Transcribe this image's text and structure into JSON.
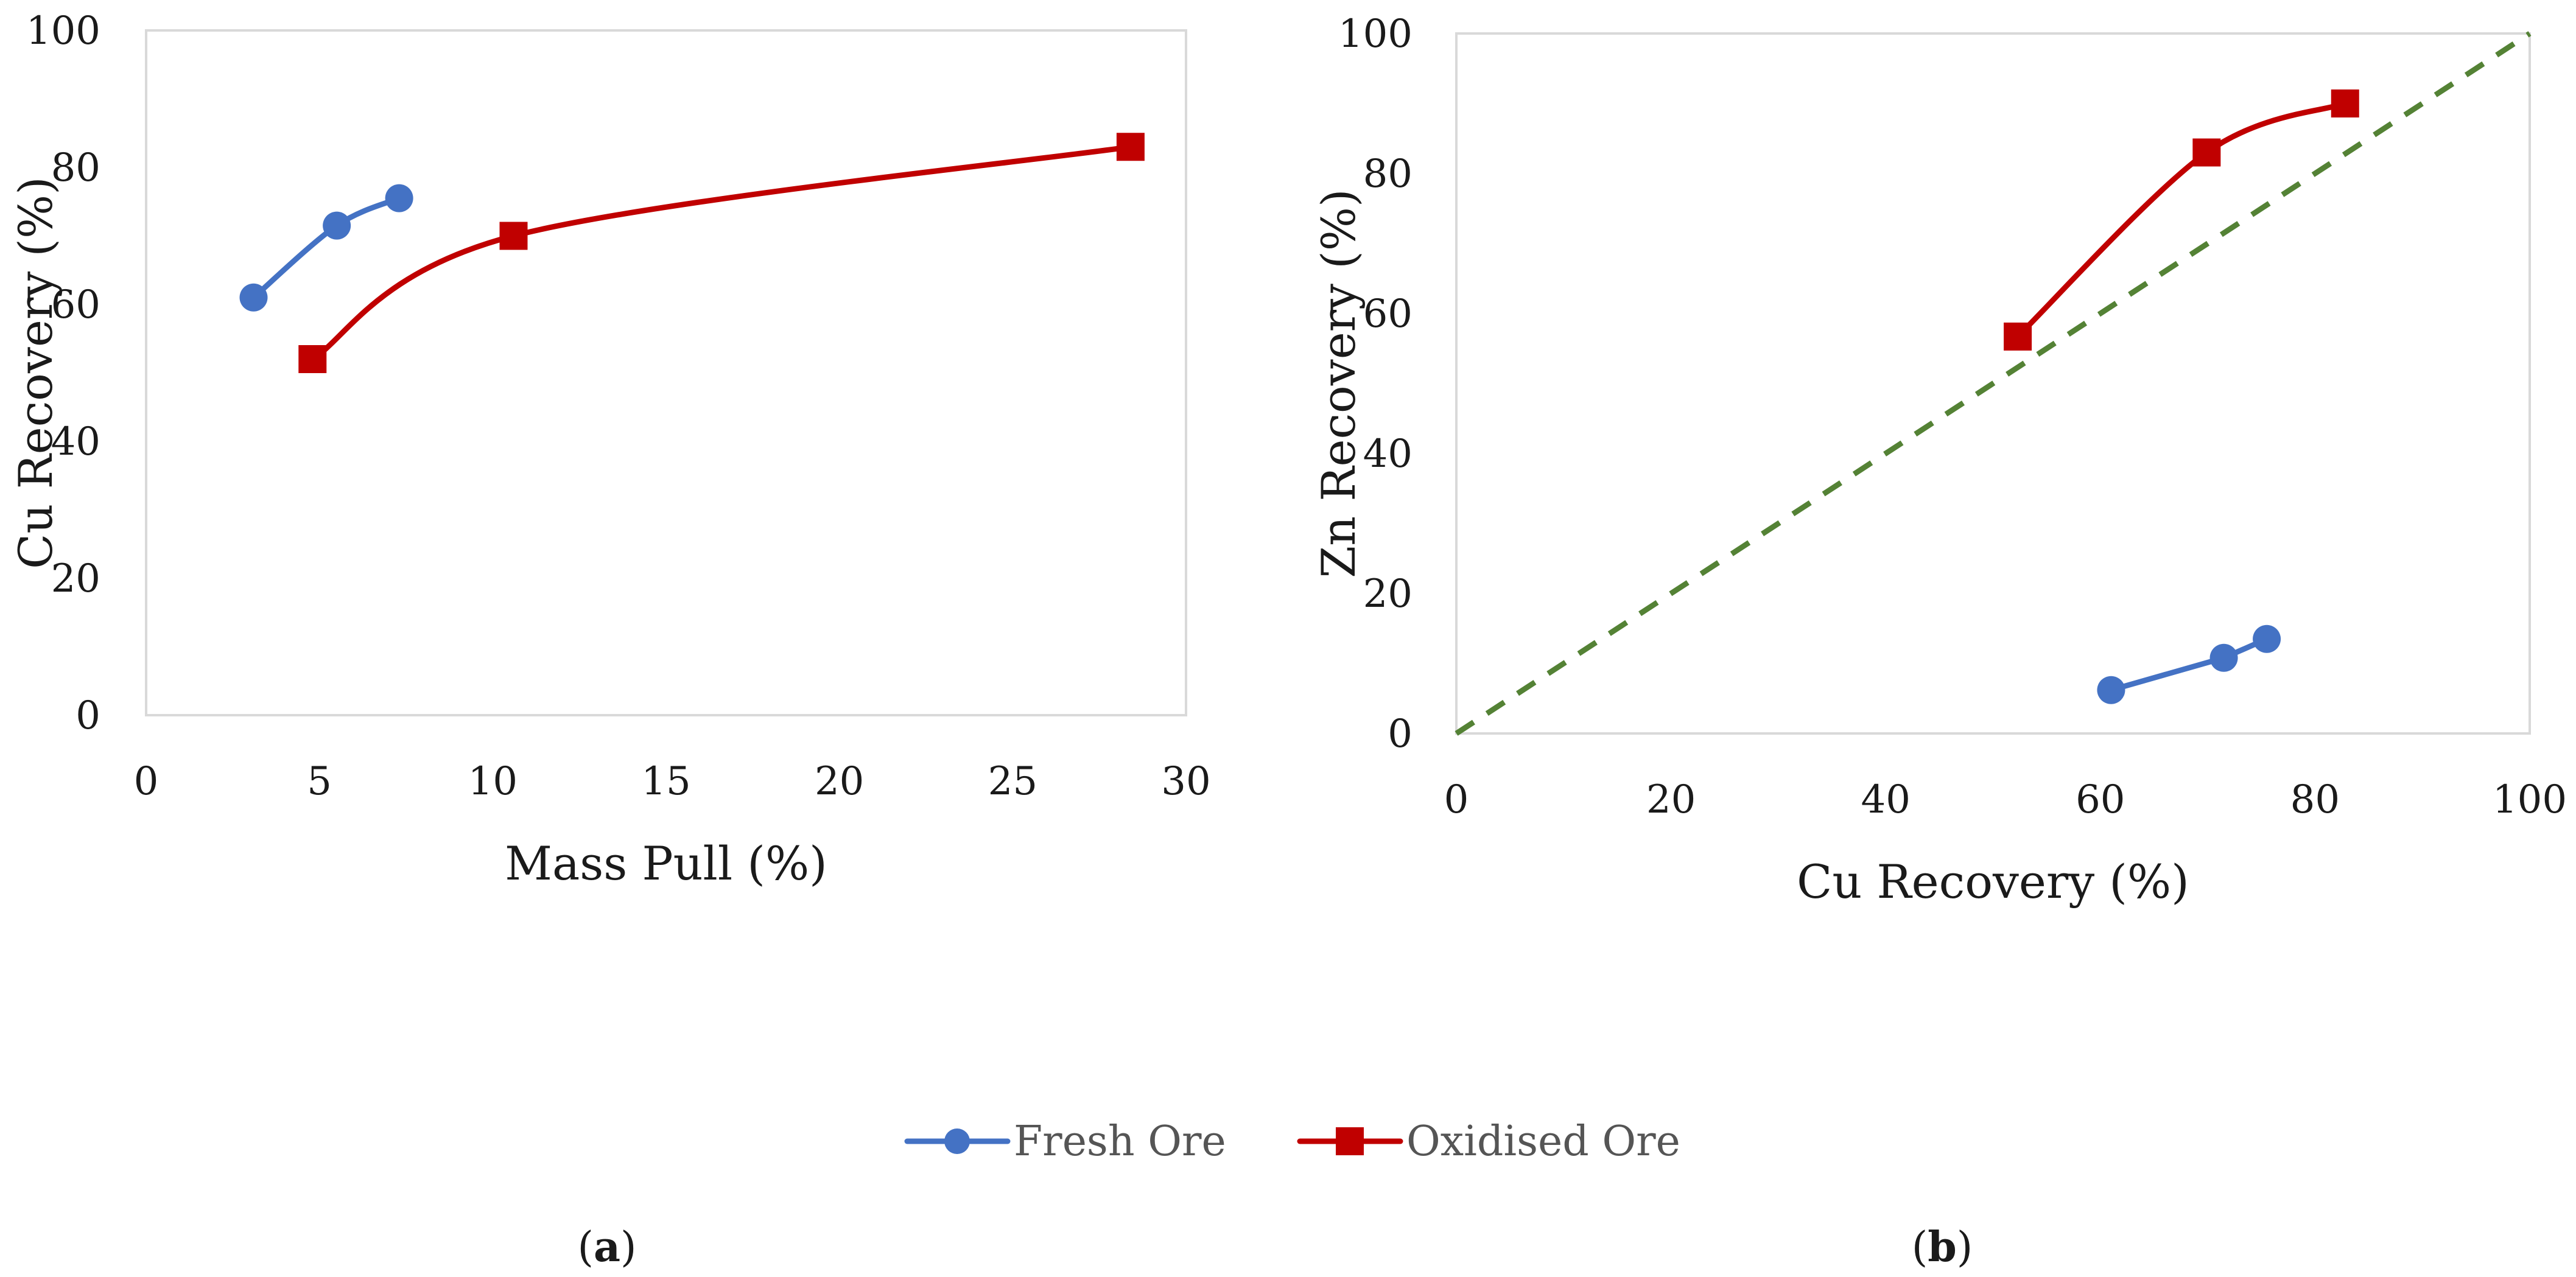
{
  "chart_data": [
    {
      "type": "scatter",
      "panel_label": "a",
      "xlabel": "Mass Pull (%)",
      "ylabel": "Cu Recovery (%)",
      "xlim": [
        0,
        30
      ],
      "ylim": [
        0,
        100
      ],
      "x_ticks": [
        0,
        5,
        10,
        15,
        20,
        25,
        30
      ],
      "y_ticks": [
        0,
        20,
        40,
        60,
        80,
        100
      ],
      "grid": false,
      "series": [
        {
          "name": "Fresh Ore",
          "marker": "circle",
          "color": "#4472C4",
          "smooth": true,
          "x": [
            3.1,
            5.5,
            7.3
          ],
          "y": [
            61,
            71.5,
            75.5
          ]
        },
        {
          "name": "Oxidised Ore",
          "marker": "square",
          "color": "#C00000",
          "smooth": true,
          "x": [
            4.8,
            10.6,
            28.4
          ],
          "y": [
            52,
            70,
            83
          ]
        }
      ]
    },
    {
      "type": "scatter",
      "panel_label": "b",
      "xlabel": "Cu Recovery (%)",
      "ylabel": "Zn Recovery (%)",
      "xlim": [
        0,
        100
      ],
      "ylim": [
        0,
        100
      ],
      "x_ticks": [
        0,
        20,
        40,
        60,
        80,
        100
      ],
      "y_ticks": [
        0,
        20,
        40,
        60,
        80,
        100
      ],
      "grid": false,
      "series": [
        {
          "name": "Fresh Ore",
          "marker": "circle",
          "color": "#4472C4",
          "smooth": false,
          "x": [
            61,
            71.5,
            75.5
          ],
          "y": [
            6.2,
            10.8,
            13.5
          ]
        },
        {
          "name": "Oxidised Ore",
          "marker": "square",
          "color": "#C00000",
          "smooth": true,
          "x": [
            52.3,
            69.9,
            82.8
          ],
          "y": [
            56.7,
            83,
            90
          ]
        },
        {
          "name": "y = x reference",
          "marker": "none",
          "color": "#548235",
          "dashed": true,
          "in_legend": false,
          "x": [
            0,
            100
          ],
          "y": [
            0,
            100
          ]
        }
      ]
    }
  ],
  "legend": {
    "placement": "bottom-center",
    "items": [
      {
        "label": "Fresh Ore",
        "marker": "circle",
        "color": "#4472C4"
      },
      {
        "label": "Oxidised Ore",
        "marker": "square",
        "color": "#C00000"
      }
    ]
  },
  "panel_labels": [
    {
      "open": "(",
      "letter": "a",
      "close": ")"
    },
    {
      "open": "(",
      "letter": "b",
      "close": ")"
    }
  ]
}
